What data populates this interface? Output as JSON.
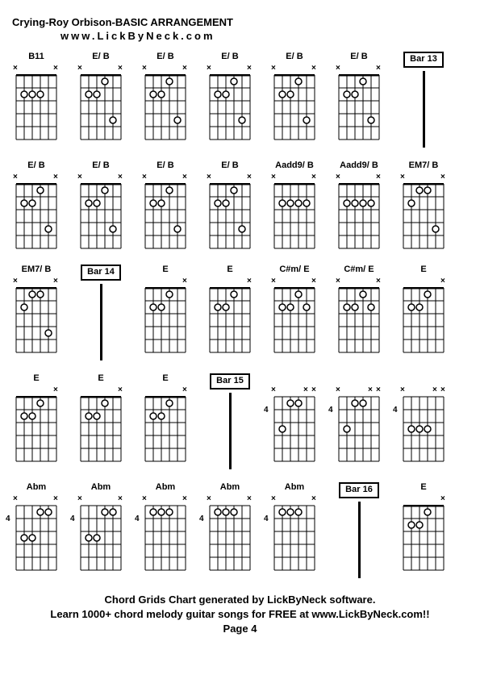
{
  "title": "Crying-Roy Orbison-BASIC ARRANGEMENT",
  "subtitle": "www.LickByNeck.com",
  "footer": {
    "line1": "Chord Grids Chart generated by LickByNeck software.",
    "line2": "Learn 1000+ chord melody guitar songs for FREE at www.LickByNeck.com!!",
    "line3": "Page 4"
  },
  "diagram_style": {
    "strings": 6,
    "frets": 5,
    "width": 50,
    "height": 80,
    "dot_radius": 4,
    "string_color": "#000000",
    "background": "#ffffff"
  },
  "chords": [
    {
      "type": "chord",
      "label": "B11",
      "fretPos": "",
      "nut": true,
      "muted": [
        0,
        5
      ],
      "dots": [
        {
          "s": 1,
          "f": 2
        },
        {
          "s": 2,
          "f": 2
        },
        {
          "s": 3,
          "f": 2
        }
      ]
    },
    {
      "type": "chord",
      "label": "E/ B",
      "fretPos": "",
      "nut": true,
      "muted": [
        0,
        5
      ],
      "dots": [
        {
          "s": 1,
          "f": 2
        },
        {
          "s": 2,
          "f": 2
        },
        {
          "s": 3,
          "f": 1
        },
        {
          "s": 4,
          "f": 4
        }
      ]
    },
    {
      "type": "chord",
      "label": "E/ B",
      "fretPos": "",
      "nut": true,
      "muted": [
        0,
        5
      ],
      "dots": [
        {
          "s": 1,
          "f": 2
        },
        {
          "s": 2,
          "f": 2
        },
        {
          "s": 3,
          "f": 1
        },
        {
          "s": 4,
          "f": 4
        }
      ]
    },
    {
      "type": "chord",
      "label": "E/ B",
      "fretPos": "",
      "nut": true,
      "muted": [
        0,
        5
      ],
      "dots": [
        {
          "s": 1,
          "f": 2
        },
        {
          "s": 2,
          "f": 2
        },
        {
          "s": 3,
          "f": 1
        },
        {
          "s": 4,
          "f": 4
        }
      ]
    },
    {
      "type": "chord",
      "label": "E/ B",
      "fretPos": "",
      "nut": true,
      "muted": [
        0,
        5
      ],
      "dots": [
        {
          "s": 1,
          "f": 2
        },
        {
          "s": 2,
          "f": 2
        },
        {
          "s": 3,
          "f": 1
        },
        {
          "s": 4,
          "f": 4
        }
      ]
    },
    {
      "type": "chord",
      "label": "E/ B",
      "fretPos": "",
      "nut": true,
      "muted": [
        0,
        5
      ],
      "dots": [
        {
          "s": 1,
          "f": 2
        },
        {
          "s": 2,
          "f": 2
        },
        {
          "s": 3,
          "f": 1
        },
        {
          "s": 4,
          "f": 4
        }
      ]
    },
    {
      "type": "bar",
      "label": "Bar 13"
    },
    {
      "type": "chord",
      "label": "E/ B",
      "fretPos": "",
      "nut": true,
      "muted": [
        0,
        5
      ],
      "dots": [
        {
          "s": 1,
          "f": 2
        },
        {
          "s": 2,
          "f": 2
        },
        {
          "s": 3,
          "f": 1
        },
        {
          "s": 4,
          "f": 4
        }
      ]
    },
    {
      "type": "chord",
      "label": "E/ B",
      "fretPos": "",
      "nut": true,
      "muted": [
        0,
        5
      ],
      "dots": [
        {
          "s": 1,
          "f": 2
        },
        {
          "s": 2,
          "f": 2
        },
        {
          "s": 3,
          "f": 1
        },
        {
          "s": 4,
          "f": 4
        }
      ]
    },
    {
      "type": "chord",
      "label": "E/ B",
      "fretPos": "",
      "nut": true,
      "muted": [
        0,
        5
      ],
      "dots": [
        {
          "s": 1,
          "f": 2
        },
        {
          "s": 2,
          "f": 2
        },
        {
          "s": 3,
          "f": 1
        },
        {
          "s": 4,
          "f": 4
        }
      ]
    },
    {
      "type": "chord",
      "label": "E/ B",
      "fretPos": "",
      "nut": true,
      "muted": [
        0,
        5
      ],
      "dots": [
        {
          "s": 1,
          "f": 2
        },
        {
          "s": 2,
          "f": 2
        },
        {
          "s": 3,
          "f": 1
        },
        {
          "s": 4,
          "f": 4
        }
      ]
    },
    {
      "type": "chord",
      "label": "Aadd9/ B",
      "fretPos": "",
      "nut": true,
      "muted": [
        0,
        5
      ],
      "dots": [
        {
          "s": 1,
          "f": 2
        },
        {
          "s": 2,
          "f": 2
        },
        {
          "s": 3,
          "f": 2
        },
        {
          "s": 4,
          "f": 2
        }
      ]
    },
    {
      "type": "chord",
      "label": "Aadd9/ B",
      "fretPos": "",
      "nut": true,
      "muted": [
        0,
        5
      ],
      "dots": [
        {
          "s": 1,
          "f": 2
        },
        {
          "s": 2,
          "f": 2
        },
        {
          "s": 3,
          "f": 2
        },
        {
          "s": 4,
          "f": 2
        }
      ]
    },
    {
      "type": "chord",
      "label": "EM7/ B",
      "fretPos": "",
      "nut": true,
      "muted": [
        0,
        5
      ],
      "dots": [
        {
          "s": 1,
          "f": 2
        },
        {
          "s": 2,
          "f": 1
        },
        {
          "s": 3,
          "f": 1
        },
        {
          "s": 4,
          "f": 4
        }
      ]
    },
    {
      "type": "chord",
      "label": "EM7/ B",
      "fretPos": "",
      "nut": true,
      "muted": [
        0,
        5
      ],
      "dots": [
        {
          "s": 1,
          "f": 2
        },
        {
          "s": 2,
          "f": 1
        },
        {
          "s": 3,
          "f": 1
        },
        {
          "s": 4,
          "f": 4
        }
      ]
    },
    {
      "type": "bar",
      "label": "Bar 14"
    },
    {
      "type": "chord",
      "label": "E",
      "fretPos": "",
      "nut": true,
      "muted": [
        5
      ],
      "dots": [
        {
          "s": 1,
          "f": 2
        },
        {
          "s": 2,
          "f": 2
        },
        {
          "s": 3,
          "f": 1
        }
      ]
    },
    {
      "type": "chord",
      "label": "E",
      "fretPos": "",
      "nut": true,
      "muted": [
        5
      ],
      "dots": [
        {
          "s": 1,
          "f": 2
        },
        {
          "s": 2,
          "f": 2
        },
        {
          "s": 3,
          "f": 1
        }
      ]
    },
    {
      "type": "chord",
      "label": "C#m/ E",
      "fretPos": "",
      "nut": true,
      "muted": [
        0,
        5
      ],
      "dots": [
        {
          "s": 1,
          "f": 2
        },
        {
          "s": 2,
          "f": 2
        },
        {
          "s": 3,
          "f": 1
        },
        {
          "s": 4,
          "f": 2
        }
      ]
    },
    {
      "type": "chord",
      "label": "C#m/ E",
      "fretPos": "",
      "nut": true,
      "muted": [
        0,
        5
      ],
      "dots": [
        {
          "s": 1,
          "f": 2
        },
        {
          "s": 2,
          "f": 2
        },
        {
          "s": 3,
          "f": 1
        },
        {
          "s": 4,
          "f": 2
        }
      ]
    },
    {
      "type": "chord",
      "label": "E",
      "fretPos": "",
      "nut": true,
      "muted": [
        5
      ],
      "dots": [
        {
          "s": 1,
          "f": 2
        },
        {
          "s": 2,
          "f": 2
        },
        {
          "s": 3,
          "f": 1
        }
      ]
    },
    {
      "type": "chord",
      "label": "E",
      "fretPos": "",
      "nut": true,
      "muted": [
        5
      ],
      "dots": [
        {
          "s": 1,
          "f": 2
        },
        {
          "s": 2,
          "f": 2
        },
        {
          "s": 3,
          "f": 1
        }
      ]
    },
    {
      "type": "chord",
      "label": "E",
      "fretPos": "",
      "nut": true,
      "muted": [
        5
      ],
      "dots": [
        {
          "s": 1,
          "f": 2
        },
        {
          "s": 2,
          "f": 2
        },
        {
          "s": 3,
          "f": 1
        }
      ]
    },
    {
      "type": "chord",
      "label": "E",
      "fretPos": "",
      "nut": true,
      "muted": [
        5
      ],
      "dots": [
        {
          "s": 1,
          "f": 2
        },
        {
          "s": 2,
          "f": 2
        },
        {
          "s": 3,
          "f": 1
        }
      ]
    },
    {
      "type": "bar",
      "label": "Bar 15"
    },
    {
      "type": "chord",
      "label": "",
      "fretPos": "4",
      "nut": false,
      "muted": [
        0,
        4,
        5
      ],
      "dots": [
        {
          "s": 1,
          "f": 3
        },
        {
          "s": 2,
          "f": 1
        },
        {
          "s": 3,
          "f": 1
        }
      ]
    },
    {
      "type": "chord",
      "label": "",
      "fretPos": "4",
      "nut": false,
      "muted": [
        0,
        4,
        5
      ],
      "dots": [
        {
          "s": 1,
          "f": 3
        },
        {
          "s": 2,
          "f": 1
        },
        {
          "s": 3,
          "f": 1
        }
      ]
    },
    {
      "type": "chord",
      "label": "",
      "fretPos": "4",
      "nut": false,
      "muted": [
        0,
        4,
        5
      ],
      "dots": [
        {
          "s": 1,
          "f": 3
        },
        {
          "s": 2,
          "f": 3
        },
        {
          "s": 3,
          "f": 3
        }
      ]
    },
    {
      "type": "chord",
      "label": "Abm",
      "fretPos": "4",
      "nut": false,
      "muted": [
        0,
        5
      ],
      "dots": [
        {
          "s": 1,
          "f": 3
        },
        {
          "s": 2,
          "f": 3
        },
        {
          "s": 3,
          "f": 1
        },
        {
          "s": 4,
          "f": 1
        }
      ]
    },
    {
      "type": "chord",
      "label": "Abm",
      "fretPos": "4",
      "nut": false,
      "muted": [
        0,
        5
      ],
      "dots": [
        {
          "s": 1,
          "f": 3
        },
        {
          "s": 2,
          "f": 3
        },
        {
          "s": 3,
          "f": 1
        },
        {
          "s": 4,
          "f": 1
        }
      ]
    },
    {
      "type": "chord",
      "label": "Abm",
      "fretPos": "4",
      "nut": false,
      "muted": [
        0,
        5
      ],
      "dots": [
        {
          "s": 1,
          "f": 1
        },
        {
          "s": 2,
          "f": 1
        },
        {
          "s": 3,
          "f": 1
        }
      ]
    },
    {
      "type": "chord",
      "label": "Abm",
      "fretPos": "4",
      "nut": false,
      "muted": [
        0,
        5
      ],
      "dots": [
        {
          "s": 1,
          "f": 1
        },
        {
          "s": 2,
          "f": 1
        },
        {
          "s": 3,
          "f": 1
        }
      ]
    },
    {
      "type": "chord",
      "label": "Abm",
      "fretPos": "4",
      "nut": false,
      "muted": [
        0,
        5
      ],
      "dots": [
        {
          "s": 1,
          "f": 1
        },
        {
          "s": 2,
          "f": 1
        },
        {
          "s": 3,
          "f": 1
        }
      ]
    },
    {
      "type": "bar",
      "label": "Bar 16"
    },
    {
      "type": "chord",
      "label": "E",
      "fretPos": "",
      "nut": true,
      "muted": [
        5
      ],
      "dots": [
        {
          "s": 1,
          "f": 2
        },
        {
          "s": 2,
          "f": 2
        },
        {
          "s": 3,
          "f": 1
        }
      ]
    }
  ]
}
